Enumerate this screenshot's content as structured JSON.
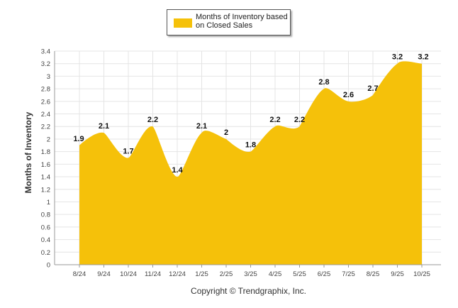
{
  "chart_data": {
    "type": "area",
    "categories": [
      "8/24",
      "9/24",
      "10/24",
      "11/24",
      "12/24",
      "1/25",
      "2/25",
      "3/25",
      "4/25",
      "5/25",
      "6/25",
      "7/25",
      "8/25",
      "9/25",
      "10/25"
    ],
    "series": [
      {
        "name": "Months of Inventory based on Closed Sales",
        "values": [
          1.9,
          2.1,
          1.7,
          2.2,
          1.4,
          2.1,
          2,
          1.8,
          2.2,
          2.2,
          2.8,
          2.6,
          2.7,
          3.2,
          3.2
        ]
      }
    ],
    "ylabel": "Months of Inventory",
    "xlabel": "",
    "ylim": [
      0,
      3.4
    ],
    "yticks": [
      "0",
      "0.2",
      "0.4",
      "0.6",
      "0.8",
      "1",
      "1.2",
      "1.4",
      "1.6",
      "1.8",
      "2",
      "2.2",
      "2.4",
      "2.6",
      "2.8",
      "3",
      "3.2",
      "3.4"
    ],
    "grid": true,
    "legend_position": "top-center",
    "fill_color": "#f5c10a"
  },
  "footer": {
    "copyright": "Copyright © Trendgraphix, Inc."
  }
}
